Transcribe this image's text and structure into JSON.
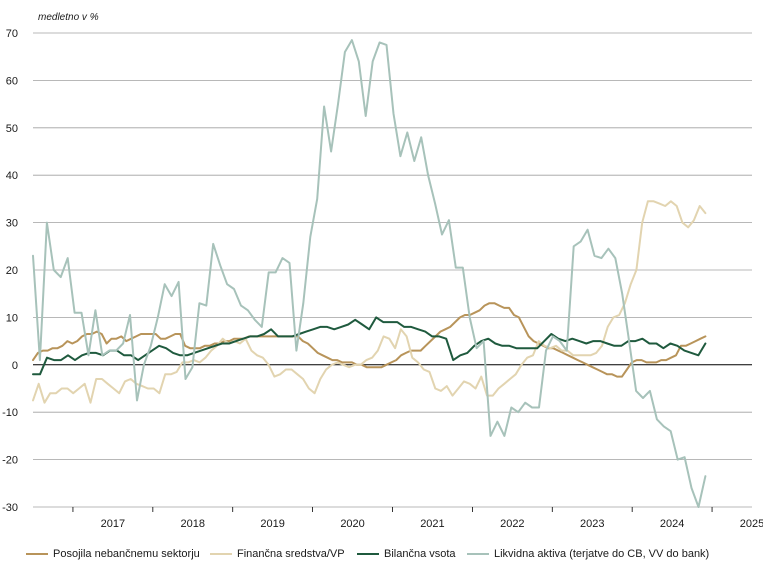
{
  "chart_data": {
    "type": "line",
    "ylabel": "medletno v %",
    "ylim": [
      -30,
      70
    ],
    "yticks": [
      70,
      60,
      50,
      40,
      30,
      20,
      10,
      0,
      -10,
      -20,
      -30
    ],
    "x_tick_labels": [
      "2017",
      "2018",
      "2019",
      "2020",
      "2021",
      "2022",
      "2023",
      "2024",
      "2025"
    ],
    "x_start": "2016-07",
    "x_end": "2025-07",
    "grid": true,
    "legend_position": "bottom",
    "series": [
      {
        "name": "Posojila nebančnemu sektorju",
        "color": "#b8945a",
        "values": [
          1,
          2.5,
          3,
          3,
          3.5,
          3.5,
          4,
          5,
          4.5,
          5,
          6,
          6.5,
          6.5,
          7,
          6.5,
          4.5,
          5.5,
          5.5,
          6,
          5,
          5.5,
          6,
          6.5,
          6.5,
          6.5,
          6.5,
          5.5,
          5.5,
          6,
          6.5,
          6.5,
          4,
          3.5,
          3.5,
          3.5,
          4,
          4,
          4.5,
          4.5,
          5,
          5,
          5.5,
          5.5,
          5.5,
          6,
          6,
          6,
          6,
          6,
          6,
          6,
          6,
          6,
          6,
          6,
          5,
          4.5,
          3.5,
          2.5,
          2,
          1.5,
          1,
          1,
          0.5,
          0.5,
          0.5,
          0,
          0,
          -0.5,
          -0.5,
          -0.5,
          -0.5,
          0,
          0.5,
          1,
          2,
          2.5,
          3,
          3,
          3,
          4,
          5,
          6,
          7,
          7.5,
          8,
          9,
          10,
          10.5,
          10.5,
          11,
          11.5,
          12.5,
          13,
          13,
          12.5,
          12,
          12,
          10.5,
          10,
          8,
          6,
          5,
          4.5,
          4,
          3.5,
          3.5,
          3,
          2.5,
          2,
          1.5,
          1,
          0.5,
          0,
          -0.5,
          -1,
          -1.5,
          -2,
          -2,
          -2.5,
          -2.5,
          -1,
          0.5,
          1,
          1,
          0.5,
          0.5,
          0.5,
          1,
          1,
          1.5,
          2,
          4,
          4,
          4.5,
          5,
          5.5,
          6
        ]
      },
      {
        "name": "Finančna sredstva/VP",
        "color": "#e2d4b0",
        "values": [
          -7.5,
          -4,
          -8,
          -6,
          -6,
          -5,
          -5,
          -6,
          -5,
          -4,
          -8,
          -3,
          -3,
          -4,
          -5,
          -6,
          -3.5,
          -3,
          -4,
          -4.5,
          -5,
          -5,
          -6,
          -2,
          -2,
          -1.5,
          0.5,
          0.5,
          1,
          0.5,
          1.5,
          3,
          4,
          5.5,
          4.5,
          5,
          4.5,
          5.5,
          3,
          2,
          1.5,
          0,
          -2.5,
          -2,
          -1,
          -1,
          -2,
          -3,
          -5,
          -6,
          -3,
          -1,
          0,
          0.5,
          0,
          -0.5,
          0,
          0,
          1,
          1.5,
          3,
          6,
          5.5,
          3.5,
          7.5,
          6,
          1.5,
          0.5,
          -1,
          -1.5,
          -5,
          -5.5,
          -4.5,
          -6.5,
          -5,
          -3.5,
          -4,
          -5,
          -2.5,
          -6.5,
          -6.5,
          -5,
          -4,
          -3,
          -2,
          0,
          1.5,
          2,
          5,
          4,
          3.5,
          4,
          3,
          3,
          2,
          2,
          2,
          2,
          2.5,
          4,
          8,
          10,
          10.5,
          13,
          17,
          20,
          30,
          34.5,
          34.5,
          34,
          33.5,
          34.5,
          33.5,
          30,
          29,
          30.5,
          33.5,
          32
        ]
      },
      {
        "name": "Bilančna vsota",
        "color": "#1f5a3e",
        "values": [
          -2,
          -2,
          1.5,
          1,
          1,
          2,
          1,
          2,
          2.5,
          2.5,
          2,
          3,
          3,
          2,
          2,
          1,
          2,
          3,
          4,
          3.5,
          2.5,
          2,
          2,
          2.5,
          3,
          3.5,
          4,
          4.5,
          4.5,
          5,
          5.5,
          6,
          6,
          6.5,
          7.5,
          6,
          6,
          6,
          6.5,
          7,
          7.5,
          8,
          8,
          7.5,
          8,
          8.5,
          9.5,
          8.5,
          7.5,
          10,
          9,
          9,
          9,
          8,
          8,
          7.5,
          7,
          6,
          6,
          5.5,
          1,
          2,
          2.5,
          4,
          5,
          5.5,
          4.5,
          4,
          4,
          3.5,
          3.5,
          3.5,
          3.5,
          5,
          6.5,
          5.5,
          5,
          5.5,
          5,
          4.5,
          5,
          5,
          4.5,
          4,
          4,
          5,
          5,
          5.5,
          4.5,
          4.5,
          3.5,
          4.5,
          4,
          3,
          2.5,
          2,
          4.5
        ]
      },
      {
        "name": "Likvidna aktiva (terjatve do CB, VV do bank)",
        "color": "#a7c2ba",
        "values": [
          23,
          1,
          30,
          20,
          18.5,
          22.5,
          11,
          11,
          2,
          11.5,
          2,
          3,
          3,
          4.5,
          10.5,
          -7.5,
          0,
          4,
          10,
          17,
          14.5,
          17.5,
          -3,
          -0.5,
          13,
          12.5,
          25.5,
          21,
          17,
          16,
          12.5,
          11.5,
          9.5,
          8,
          19.5,
          19.5,
          22.5,
          21.5,
          3,
          13,
          27,
          35,
          54.5,
          45,
          55,
          66,
          68.5,
          64,
          52.5,
          64,
          68,
          67.5,
          53,
          44,
          49,
          43,
          48,
          40,
          34,
          27.5,
          30.5,
          20.5,
          20.5,
          10,
          3.5,
          5,
          -15,
          -12,
          -15,
          -9,
          -10,
          -8,
          -9,
          -9,
          3,
          6,
          5,
          3,
          25,
          26,
          28.5,
          23,
          22.5,
          24.5,
          22.5,
          15,
          5,
          -5.5,
          -7,
          -5.5,
          -11.5,
          -13,
          -14,
          -20,
          -19.5,
          -26,
          -30,
          -23.5
        ]
      }
    ]
  }
}
